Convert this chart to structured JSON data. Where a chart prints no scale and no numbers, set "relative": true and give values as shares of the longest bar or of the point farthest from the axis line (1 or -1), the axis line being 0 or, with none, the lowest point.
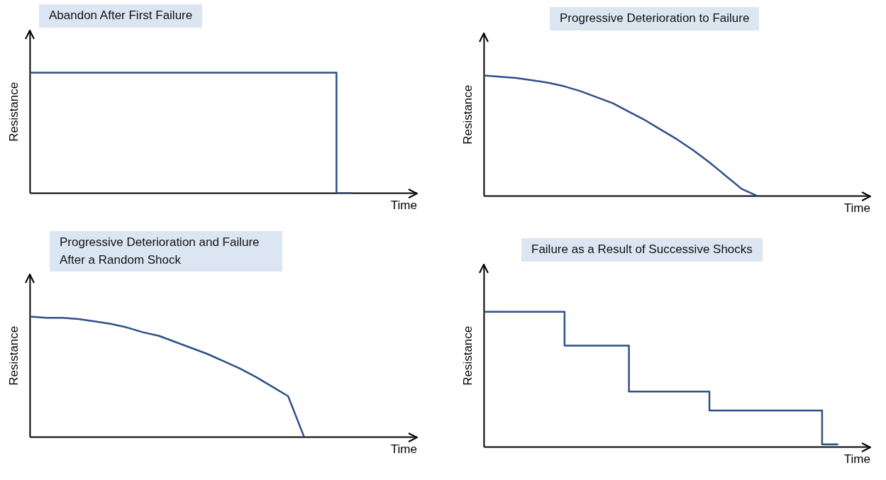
{
  "chart_data": [
    {
      "type": "step",
      "title": "Abandon After First Failure",
      "xlabel": "Time",
      "ylabel": "Resistance",
      "relative": true,
      "tick_labels": false,
      "marker": "none",
      "line_style": "solid",
      "categories": [
        null,
        null,
        null,
        null,
        null,
        null,
        null,
        null,
        null,
        null,
        null,
        null,
        null,
        null,
        null,
        null,
        null,
        null,
        null,
        null,
        null,
        null,
        null,
        null,
        null
      ],
      "series": [
        {
          "color": "#2e4f86",
          "values": [
            1,
            1,
            1,
            1,
            1,
            1,
            1,
            1,
            1,
            1,
            1,
            1,
            1,
            1,
            1,
            1,
            1,
            1,
            1,
            1,
            0,
            null,
            null,
            null,
            null
          ]
        }
      ]
    },
    {
      "type": "line",
      "title": "Progressive Deterioration to Failure",
      "xlabel": "Time",
      "ylabel": "Resistance",
      "relative": true,
      "tick_labels": false,
      "marker": "none",
      "line_style": "solid",
      "categories": [
        null,
        null,
        null,
        null,
        null,
        null,
        null,
        null,
        null,
        null,
        null,
        null,
        null,
        null,
        null,
        null,
        null,
        null,
        null,
        null,
        null,
        null,
        null,
        null,
        null
      ],
      "series": [
        {
          "color": "#2e4f86",
          "values": [
            1,
            0.99,
            0.98,
            0.96,
            0.94,
            0.91,
            0.87,
            0.82,
            0.77,
            0.7,
            0.63,
            0.55,
            0.47,
            0.38,
            0.28,
            0.17,
            0.06,
            0,
            null,
            null,
            null,
            null,
            null,
            null,
            null
          ]
        }
      ]
    },
    {
      "type": "line",
      "title": "Progressive Deterioration and Failure After a Random Shock",
      "xlabel": "Time",
      "ylabel": "Resistance",
      "relative": true,
      "tick_labels": false,
      "marker": "none",
      "line_style": "solid",
      "categories": [
        null,
        null,
        null,
        null,
        null,
        null,
        null,
        null,
        null,
        null,
        null,
        null,
        null,
        null,
        null,
        null,
        null,
        null,
        null,
        null,
        null,
        null,
        null,
        null,
        null
      ],
      "series": [
        {
          "color": "#2e4f86",
          "values": [
            1,
            0.99,
            0.99,
            0.98,
            0.96,
            0.94,
            0.91,
            0.87,
            0.84,
            0.79,
            0.74,
            0.69,
            0.63,
            0.57,
            0.5,
            0.42,
            0.34,
            0,
            null,
            null,
            null,
            null,
            null,
            null,
            null
          ]
        }
      ]
    },
    {
      "type": "step",
      "title": "Failure as a Result of Successive Shocks",
      "xlabel": "Time",
      "ylabel": "Resistance",
      "relative": true,
      "tick_labels": false,
      "marker": "none",
      "line_style": "solid",
      "categories": [
        null,
        null,
        null,
        null,
        null,
        null,
        null,
        null,
        null,
        null,
        null,
        null,
        null,
        null,
        null,
        null,
        null,
        null,
        null,
        null,
        null,
        null,
        null,
        null,
        null
      ],
      "series": [
        {
          "color": "#2e4f86",
          "values": [
            1,
            1,
            1,
            1,
            1,
            1,
            0.75,
            0.75,
            0.75,
            0.75,
            0.41,
            0.41,
            0.41,
            0.41,
            0.41,
            0.27,
            0.27,
            0.27,
            0.27,
            0.27,
            0.27,
            0.27,
            0.02,
            null,
            null
          ]
        }
      ]
    }
  ]
}
